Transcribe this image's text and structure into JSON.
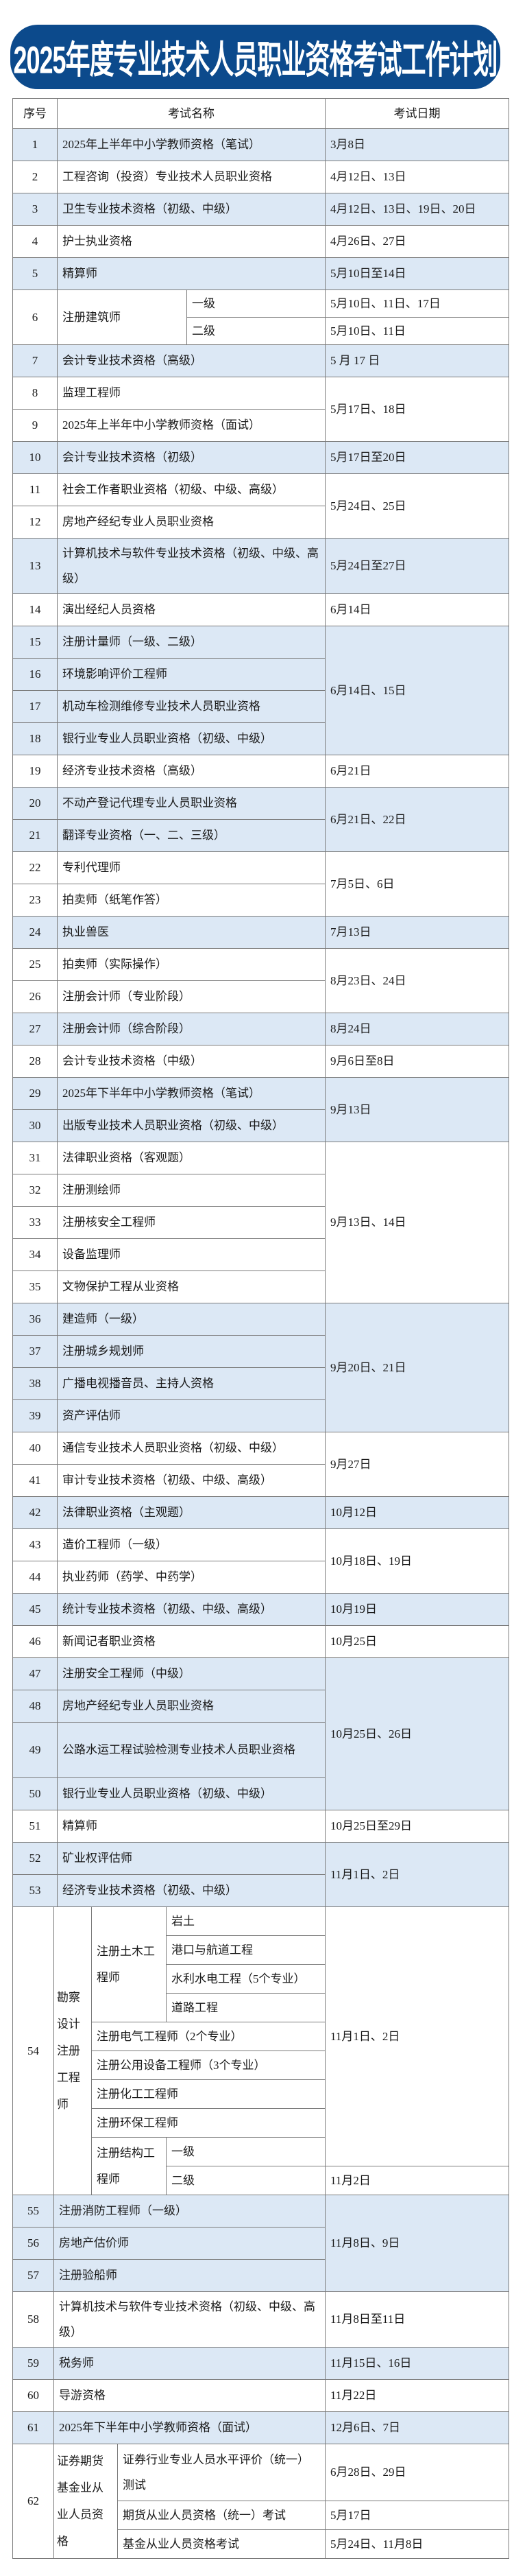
{
  "title": "2025年度专业技术人员职业资格考试工作计划",
  "colors": {
    "banner": "#0c4a8c",
    "row_shade": "#dce8f5"
  },
  "header": {
    "no": "序号",
    "name": "考试名称",
    "date": "考试日期"
  },
  "exams_part1": [
    {
      "shaded": true,
      "date": "3月8日",
      "items": [
        {
          "no": "1",
          "name": "2025年上半年中小学教师资格（笔试）"
        }
      ]
    },
    {
      "shaded": false,
      "date": "4月12日、13日",
      "items": [
        {
          "no": "2",
          "name": "工程咨询（投资）专业技术人员职业资格"
        }
      ]
    },
    {
      "shaded": true,
      "date": "4月12日、13日、19日、20日",
      "items": [
        {
          "no": "3",
          "name": "卫生专业技术资格（初级、中级）"
        }
      ]
    },
    {
      "shaded": false,
      "date": "4月26日、27日",
      "items": [
        {
          "no": "4",
          "name": "护士执业资格"
        }
      ]
    },
    {
      "shaded": true,
      "date": "5月10日至14日",
      "items": [
        {
          "no": "5",
          "name": "精算师"
        }
      ]
    },
    {
      "shaded": false,
      "items": [
        {
          "no": "6",
          "name": "注册建筑师",
          "levels": [
            {
              "name": "一级",
              "date": "5月10日、11日、17日"
            },
            {
              "name": "二级",
              "date": "5月10日、11日"
            }
          ]
        }
      ]
    },
    {
      "shaded": true,
      "date": "5 月 17 日",
      "items": [
        {
          "no": "7",
          "name": "会计专业技术资格（高级）"
        }
      ]
    },
    {
      "shaded": false,
      "date": "5月17日、18日",
      "items": [
        {
          "no": "8",
          "name": "监理工程师"
        },
        {
          "no": "9",
          "name": "2025年上半年中小学教师资格（面试）"
        }
      ]
    },
    {
      "shaded": true,
      "date": "5月17日至20日",
      "items": [
        {
          "no": "10",
          "name": "会计专业技术资格（初级）"
        }
      ]
    },
    {
      "shaded": false,
      "date": "5月24日、25日",
      "items": [
        {
          "no": "11",
          "name": "社会工作者职业资格（初级、中级、高级）"
        },
        {
          "no": "12",
          "name": "房地产经纪专业人员职业资格"
        }
      ]
    },
    {
      "shaded": true,
      "date": "5月24日至27日",
      "items": [
        {
          "no": "13",
          "name": "计算机技术与软件专业技术资格（初级、中级、高级）",
          "two_line": true
        }
      ]
    },
    {
      "shaded": false,
      "date": "6月14日",
      "items": [
        {
          "no": "14",
          "name": "演出经纪人员资格"
        }
      ]
    },
    {
      "shaded": true,
      "date": "6月14日、15日",
      "items": [
        {
          "no": "15",
          "name": "注册计量师（一级、二级）"
        },
        {
          "no": "16",
          "name": "环境影响评价工程师"
        },
        {
          "no": "17",
          "name": "机动车检测维修专业技术人员职业资格"
        },
        {
          "no": "18",
          "name": "银行业专业人员职业资格（初级、中级）"
        }
      ]
    },
    {
      "shaded": false,
      "date": "6月21日",
      "items": [
        {
          "no": "19",
          "name": "经济专业技术资格（高级）"
        }
      ]
    },
    {
      "shaded": true,
      "date": "6月21日、22日",
      "items": [
        {
          "no": "20",
          "name": "不动产登记代理专业人员职业资格"
        },
        {
          "no": "21",
          "name": "翻译专业资格（一、二、三级）"
        }
      ]
    },
    {
      "shaded": false,
      "date": "7月5日、6日",
      "items": [
        {
          "no": "22",
          "name": "专利代理师"
        },
        {
          "no": "23",
          "name": "拍卖师（纸笔作答）"
        }
      ]
    },
    {
      "shaded": true,
      "date": "7月13日",
      "items": [
        {
          "no": "24",
          "name": "执业兽医"
        }
      ]
    },
    {
      "shaded": false,
      "date": "8月23日、24日",
      "items": [
        {
          "no": "25",
          "name": "拍卖师（实际操作）"
        },
        {
          "no": "26",
          "name": "注册会计师（专业阶段）"
        }
      ]
    },
    {
      "shaded": true,
      "date": "8月24日",
      "items": [
        {
          "no": "27",
          "name": "注册会计师（综合阶段）"
        }
      ]
    },
    {
      "shaded": false,
      "date": "9月6日至8日",
      "items": [
        {
          "no": "28",
          "name": "会计专业技术资格（中级）"
        }
      ]
    },
    {
      "shaded": true,
      "date": "9月13日",
      "items": [
        {
          "no": "29",
          "name": "2025年下半年中小学教师资格（笔试）"
        },
        {
          "no": "30",
          "name": "出版专业技术人员职业资格（初级、中级）"
        }
      ]
    },
    {
      "shaded": false,
      "date": "9月13日、14日",
      "items": [
        {
          "no": "31",
          "name": "法律职业资格（客观题）"
        },
        {
          "no": "32",
          "name": "注册测绘师"
        },
        {
          "no": "33",
          "name": "注册核安全工程师"
        },
        {
          "no": "34",
          "name": "设备监理师"
        },
        {
          "no": "35",
          "name": "文物保护工程从业资格"
        }
      ]
    },
    {
      "shaded": true,
      "date": "9月20日、21日",
      "items": [
        {
          "no": "36",
          "name": "建造师（一级）"
        },
        {
          "no": "37",
          "name": "注册城乡规划师"
        },
        {
          "no": "38",
          "name": "广播电视播音员、主持人资格"
        },
        {
          "no": "39",
          "name": "资产评估师"
        }
      ]
    },
    {
      "shaded": false,
      "date": "9月27日",
      "items": [
        {
          "no": "40",
          "name": "通信专业技术人员职业资格（初级、中级）"
        },
        {
          "no": "41",
          "name": "审计专业技术资格（初级、中级、高级）"
        }
      ]
    },
    {
      "shaded": true,
      "date": "10月12日",
      "items": [
        {
          "no": "42",
          "name": "法律职业资格（主观题）"
        }
      ]
    },
    {
      "shaded": false,
      "date": "10月18日、19日",
      "items": [
        {
          "no": "43",
          "name": "造价工程师（一级）"
        },
        {
          "no": "44",
          "name": "执业药师（药学、中药学）"
        }
      ]
    },
    {
      "shaded": true,
      "date": "10月19日",
      "items": [
        {
          "no": "45",
          "name": "统计专业技术资格（初级、中级、高级）"
        }
      ]
    },
    {
      "shaded": false,
      "date": "10月25日",
      "items": [
        {
          "no": "46",
          "name": "新闻记者职业资格"
        }
      ]
    },
    {
      "shaded": true,
      "date": "10月25日、26日",
      "items": [
        {
          "no": "47",
          "name": "注册安全工程师（中级）"
        },
        {
          "no": "48",
          "name": "房地产经纪专业人员职业资格"
        },
        {
          "no": "49",
          "name": "公路水运工程试验检测专业技术人员职业资格",
          "two_line": true
        },
        {
          "no": "50",
          "name": "银行业专业人员职业资格（初级、中级）"
        }
      ]
    },
    {
      "shaded": false,
      "date": "10月25日至29日",
      "items": [
        {
          "no": "51",
          "name": "精算师"
        }
      ]
    },
    {
      "shaded": true,
      "date": "11月1日、2日",
      "items": [
        {
          "no": "52",
          "name": "矿业权评估师"
        },
        {
          "no": "53",
          "name": "经济专业技术资格（初级、中级）"
        }
      ]
    }
  ],
  "survey_design": {
    "no": "54",
    "name": "勘察设计注册工程师",
    "date_main": "11月1日、2日",
    "civil": {
      "name": "注册土木工程师",
      "specialties": [
        "岩土",
        "港口与航道工程",
        "水利水电工程（5个专业）",
        "道路工程"
      ]
    },
    "others": [
      "注册电气工程师（2个专业）",
      "注册公用设备工程师（3个专业）",
      "注册化工工程师",
      "注册环保工程师"
    ],
    "structural": {
      "name": "注册结构工程师",
      "levels": [
        {
          "name": "一级"
        },
        {
          "name": "二级",
          "date": "11月2日"
        }
      ]
    }
  },
  "exams_part2": [
    {
      "shaded": true,
      "date": "11月8日、9日",
      "items": [
        {
          "no": "55",
          "name": "注册消防工程师（一级）"
        },
        {
          "no": "56",
          "name": "房地产估价师"
        },
        {
          "no": "57",
          "name": "注册验船师"
        }
      ]
    },
    {
      "shaded": false,
      "date": "11月8日至11日",
      "items": [
        {
          "no": "58",
          "name": "计算机技术与软件专业技术资格（初级、中级、高级）",
          "two_line": true
        }
      ]
    },
    {
      "shaded": true,
      "date": "11月15日、16日",
      "items": [
        {
          "no": "59",
          "name": "税务师"
        }
      ]
    },
    {
      "shaded": false,
      "date": "11月22日",
      "items": [
        {
          "no": "60",
          "name": "导游资格"
        }
      ]
    },
    {
      "shaded": true,
      "date": "12月6日、7日",
      "items": [
        {
          "no": "61",
          "name": "2025年下半年中小学教师资格（面试）"
        }
      ]
    }
  ],
  "securities": {
    "no": "62",
    "name": "证券期货基金业从业人员资格",
    "items": [
      {
        "name": "证券行业专业人员水平评价（统一）测试",
        "date": "6月28日、29日"
      },
      {
        "name": "期货从业人员资格（统一）考试",
        "date": "5月17日"
      },
      {
        "name": "基金从业人员资格考试",
        "date": "5月24日、11月8日"
      }
    ]
  }
}
